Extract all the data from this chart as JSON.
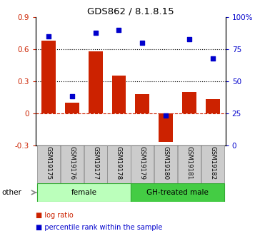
{
  "title": "GDS862 / 8.1.8.15",
  "samples": [
    "GSM19175",
    "GSM19176",
    "GSM19177",
    "GSM19178",
    "GSM19179",
    "GSM19180",
    "GSM19181",
    "GSM19182"
  ],
  "log_ratio": [
    0.68,
    0.1,
    0.58,
    0.35,
    0.18,
    -0.27,
    0.2,
    0.13
  ],
  "percentile_rank": [
    85,
    38,
    88,
    90,
    80,
    23,
    83,
    68
  ],
  "bar_color": "#cc2200",
  "dot_color": "#0000cc",
  "groups": [
    {
      "label": "female",
      "indices": [
        0,
        3
      ],
      "color": "#bbffbb"
    },
    {
      "label": "GH-treated male",
      "indices": [
        4,
        7
      ],
      "color": "#44cc44"
    }
  ],
  "ylim_left": [
    -0.3,
    0.9
  ],
  "ylim_right": [
    0,
    100
  ],
  "yticks_left": [
    -0.3,
    0.0,
    0.3,
    0.6,
    0.9
  ],
  "ytick_labels_left": [
    "-0.3",
    "0",
    "0.3",
    "0.6",
    "0.9"
  ],
  "yticks_right": [
    0,
    25,
    50,
    75,
    100
  ],
  "ytick_labels_right": [
    "0",
    "25",
    "50",
    "75",
    "100%"
  ],
  "hlines": [
    0.3,
    0.6
  ],
  "zero_line_color": "#cc2200",
  "dotted_line_color": "black",
  "background_plot": "#ffffff",
  "xlabel_area_color": "#cccccc",
  "other_label": "other",
  "legend_log": "log ratio",
  "legend_pct": "percentile rank within the sample"
}
